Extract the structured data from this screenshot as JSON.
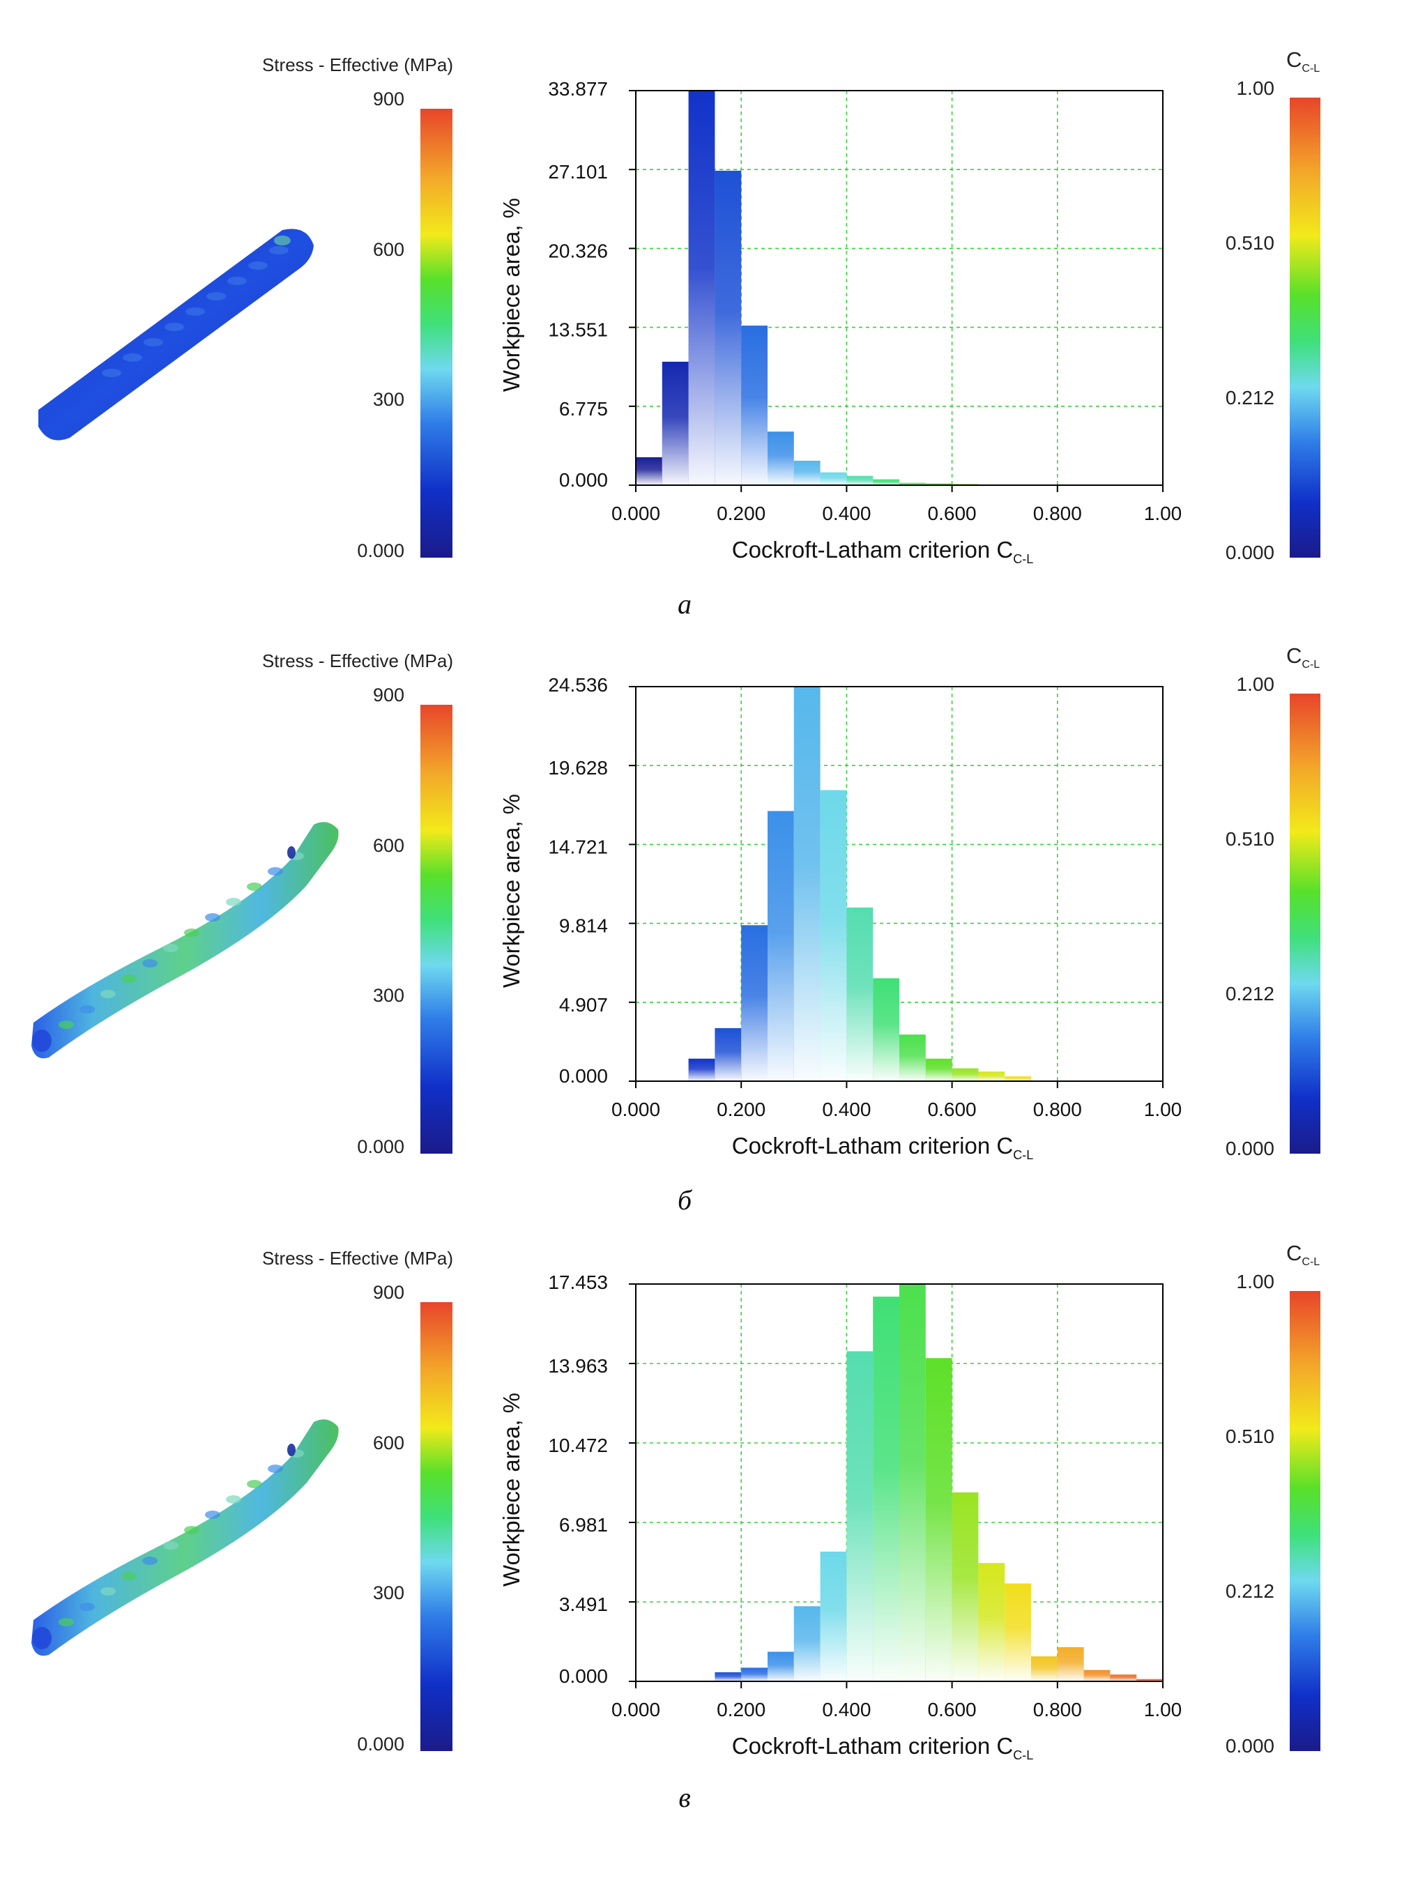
{
  "colors": {
    "grid": "#35d435",
    "axis": "#000000",
    "scale_stops": [
      "#1b1b8a",
      "#1030c8",
      "#2f7de8",
      "#6fd9ef",
      "#3fe07a",
      "#58e02a",
      "#f2ea1a",
      "#f3a62a",
      "#e8452a"
    ]
  },
  "stress_legend": {
    "title": "Stress - Effective (MPa)",
    "ticks": [
      "900",
      "600",
      "300",
      "0.000"
    ]
  },
  "cl_legend": {
    "title": "C",
    "title_sub": "C-L",
    "ticks": [
      "1.00",
      "0.510",
      "0.212",
      "0.000"
    ]
  },
  "panels": [
    {
      "caption": "а",
      "workpiece": "mostly blue",
      "chart_data": {
        "type": "bar",
        "title": "",
        "xlabel": "Cockroft-Latham criterion C",
        "xlabel_sub": "C-L",
        "ylabel": "Workpiece area, %",
        "x_ticks": [
          "0.000",
          "0.200",
          "0.400",
          "0.600",
          "0.800",
          "1.00"
        ],
        "y_ticks": [
          "0.000",
          "6.775",
          "13.551",
          "20.326",
          "27.101",
          "33.877"
        ],
        "xlim": [
          0,
          1
        ],
        "ylim": [
          0,
          33.877
        ],
        "bin_width": 0.05,
        "bins_start": [
          0.0,
          0.05,
          0.1,
          0.15,
          0.2,
          0.25,
          0.3,
          0.35,
          0.4,
          0.45,
          0.5,
          0.55,
          0.6
        ],
        "values": [
          2.4,
          10.6,
          33.877,
          27.0,
          13.7,
          4.6,
          2.1,
          1.1,
          0.8,
          0.5,
          0.2,
          0.15,
          0.1
        ]
      }
    },
    {
      "caption": "б",
      "workpiece": "green-blue mix",
      "chart_data": {
        "type": "bar",
        "title": "",
        "xlabel": "Cockroft-Latham criterion C",
        "xlabel_sub": "C-L",
        "ylabel": "Workpiece area, %",
        "x_ticks": [
          "0.000",
          "0.200",
          "0.400",
          "0.600",
          "0.800",
          "1.00"
        ],
        "y_ticks": [
          "0.000",
          "4.907",
          "9.814",
          "14.721",
          "19.628",
          "24.536"
        ],
        "xlim": [
          0,
          1
        ],
        "ylim": [
          0,
          24.536
        ],
        "bin_width": 0.05,
        "bins_start": [
          0.1,
          0.15,
          0.2,
          0.25,
          0.3,
          0.35,
          0.4,
          0.45,
          0.5,
          0.55,
          0.6,
          0.65,
          0.7
        ],
        "values": [
          1.4,
          3.3,
          9.7,
          16.8,
          24.536,
          18.1,
          10.8,
          6.4,
          2.9,
          1.4,
          0.8,
          0.6,
          0.3
        ]
      }
    },
    {
      "caption": "в",
      "workpiece": "green-blue mix",
      "chart_data": {
        "type": "bar",
        "title": "",
        "xlabel": "Cockroft-Latham criterion C",
        "xlabel_sub": "C-L",
        "ylabel": "Workpiece area, %",
        "x_ticks": [
          "0.000",
          "0.200",
          "0.400",
          "0.600",
          "0.800",
          "1.00"
        ],
        "y_ticks": [
          "0.000",
          "3.491",
          "6.981",
          "10.472",
          "13.963",
          "17.453"
        ],
        "xlim": [
          0,
          1
        ],
        "ylim": [
          0,
          17.453
        ],
        "bin_width": 0.05,
        "bins_start": [
          0.15,
          0.2,
          0.25,
          0.3,
          0.35,
          0.4,
          0.45,
          0.5,
          0.55,
          0.6,
          0.65,
          0.7,
          0.75,
          0.8,
          0.85,
          0.9,
          0.95
        ],
        "values": [
          0.4,
          0.6,
          1.3,
          3.3,
          5.7,
          14.5,
          16.9,
          17.453,
          14.2,
          8.3,
          5.2,
          4.3,
          1.1,
          1.5,
          0.5,
          0.3,
          0.1
        ]
      }
    }
  ]
}
